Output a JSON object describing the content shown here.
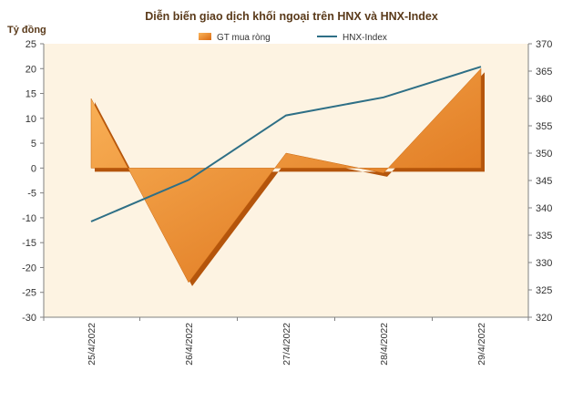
{
  "chart_data": {
    "type": "area+line",
    "title": "Diễn biến giao dịch khối ngoại trên HNX và HNX-Index",
    "ylabel_left": "Tỷ đồng",
    "categories": [
      "25/4/2022",
      "26/4/2022",
      "27/4/2022",
      "28/4/2022",
      "29/4/2022"
    ],
    "y_left": {
      "min": -30,
      "max": 25,
      "step": 5
    },
    "y_right": {
      "min": 320,
      "max": 370,
      "step": 5
    },
    "series": [
      {
        "name": "GT mua ròng",
        "axis": "left",
        "kind": "area",
        "values": [
          14,
          -23,
          3,
          -1,
          20
        ]
      },
      {
        "name": "HNX-Index",
        "axis": "right",
        "kind": "line",
        "values": [
          337.5,
          345.1,
          356.9,
          360.2,
          365.8
        ]
      }
    ],
    "legend_position": "top",
    "grid": false,
    "colors": {
      "plot_bg": "#fdf3e2",
      "area_light": "#fbb55b",
      "area_dark": "#d96a12",
      "line": "#2e6f86",
      "title": "#5a3a1a",
      "axis_text": "#333333"
    }
  }
}
